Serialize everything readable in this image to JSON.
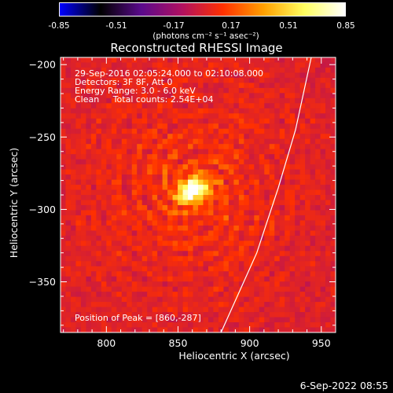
{
  "colorbar": {
    "ticks": [
      "-0.85",
      "-0.51",
      "-0.17",
      "0.17",
      "0.51",
      "0.85"
    ],
    "unit_label": "(photons cm⁻² s⁻¹ asec⁻²)",
    "range": [
      -0.85,
      0.85
    ],
    "colormap": [
      "#0000ff",
      "#000000",
      "#5a0a8c",
      "#b01060",
      "#ff3000",
      "#ffa000",
      "#ffff60",
      "#ffffff"
    ]
  },
  "chart_data": {
    "type": "heatmap",
    "title": "Reconstructed RHESSI Image",
    "xlabel": "Heliocentric X (arcsec)",
    "ylabel": "Heliocentric Y (arcsec)",
    "xlim": [
      768,
      960
    ],
    "ylim": [
      -385,
      -195
    ],
    "x_ticks": [
      800,
      850,
      900,
      950
    ],
    "y_ticks": [
      -200,
      -250,
      -300,
      -350
    ],
    "x_tick_labels": [
      "800",
      "850",
      "900",
      "950"
    ],
    "y_tick_labels": [
      "−200",
      "−250",
      "−300",
      "−350"
    ],
    "peak": {
      "x": 860,
      "y": -287,
      "value": 0.85
    },
    "limb_curve": [
      [
        880,
        -385
      ],
      [
        905,
        -330
      ],
      [
        920,
        -285
      ],
      [
        932,
        -245
      ],
      [
        943,
        -195
      ]
    ]
  },
  "annotations": {
    "time_range": "29-Sep-2016 02:05:24.000 to 02:10:08.000",
    "detectors": "Detectors: 3F 8F, Att 0",
    "energy_range": "Energy Range: 3.0 - 6.0 keV",
    "method": "Clean     Total counts: 2.54E+04",
    "peak_position": "Position of Peak = [860,-287]"
  },
  "timestamp": "6-Sep-2022 08:55"
}
